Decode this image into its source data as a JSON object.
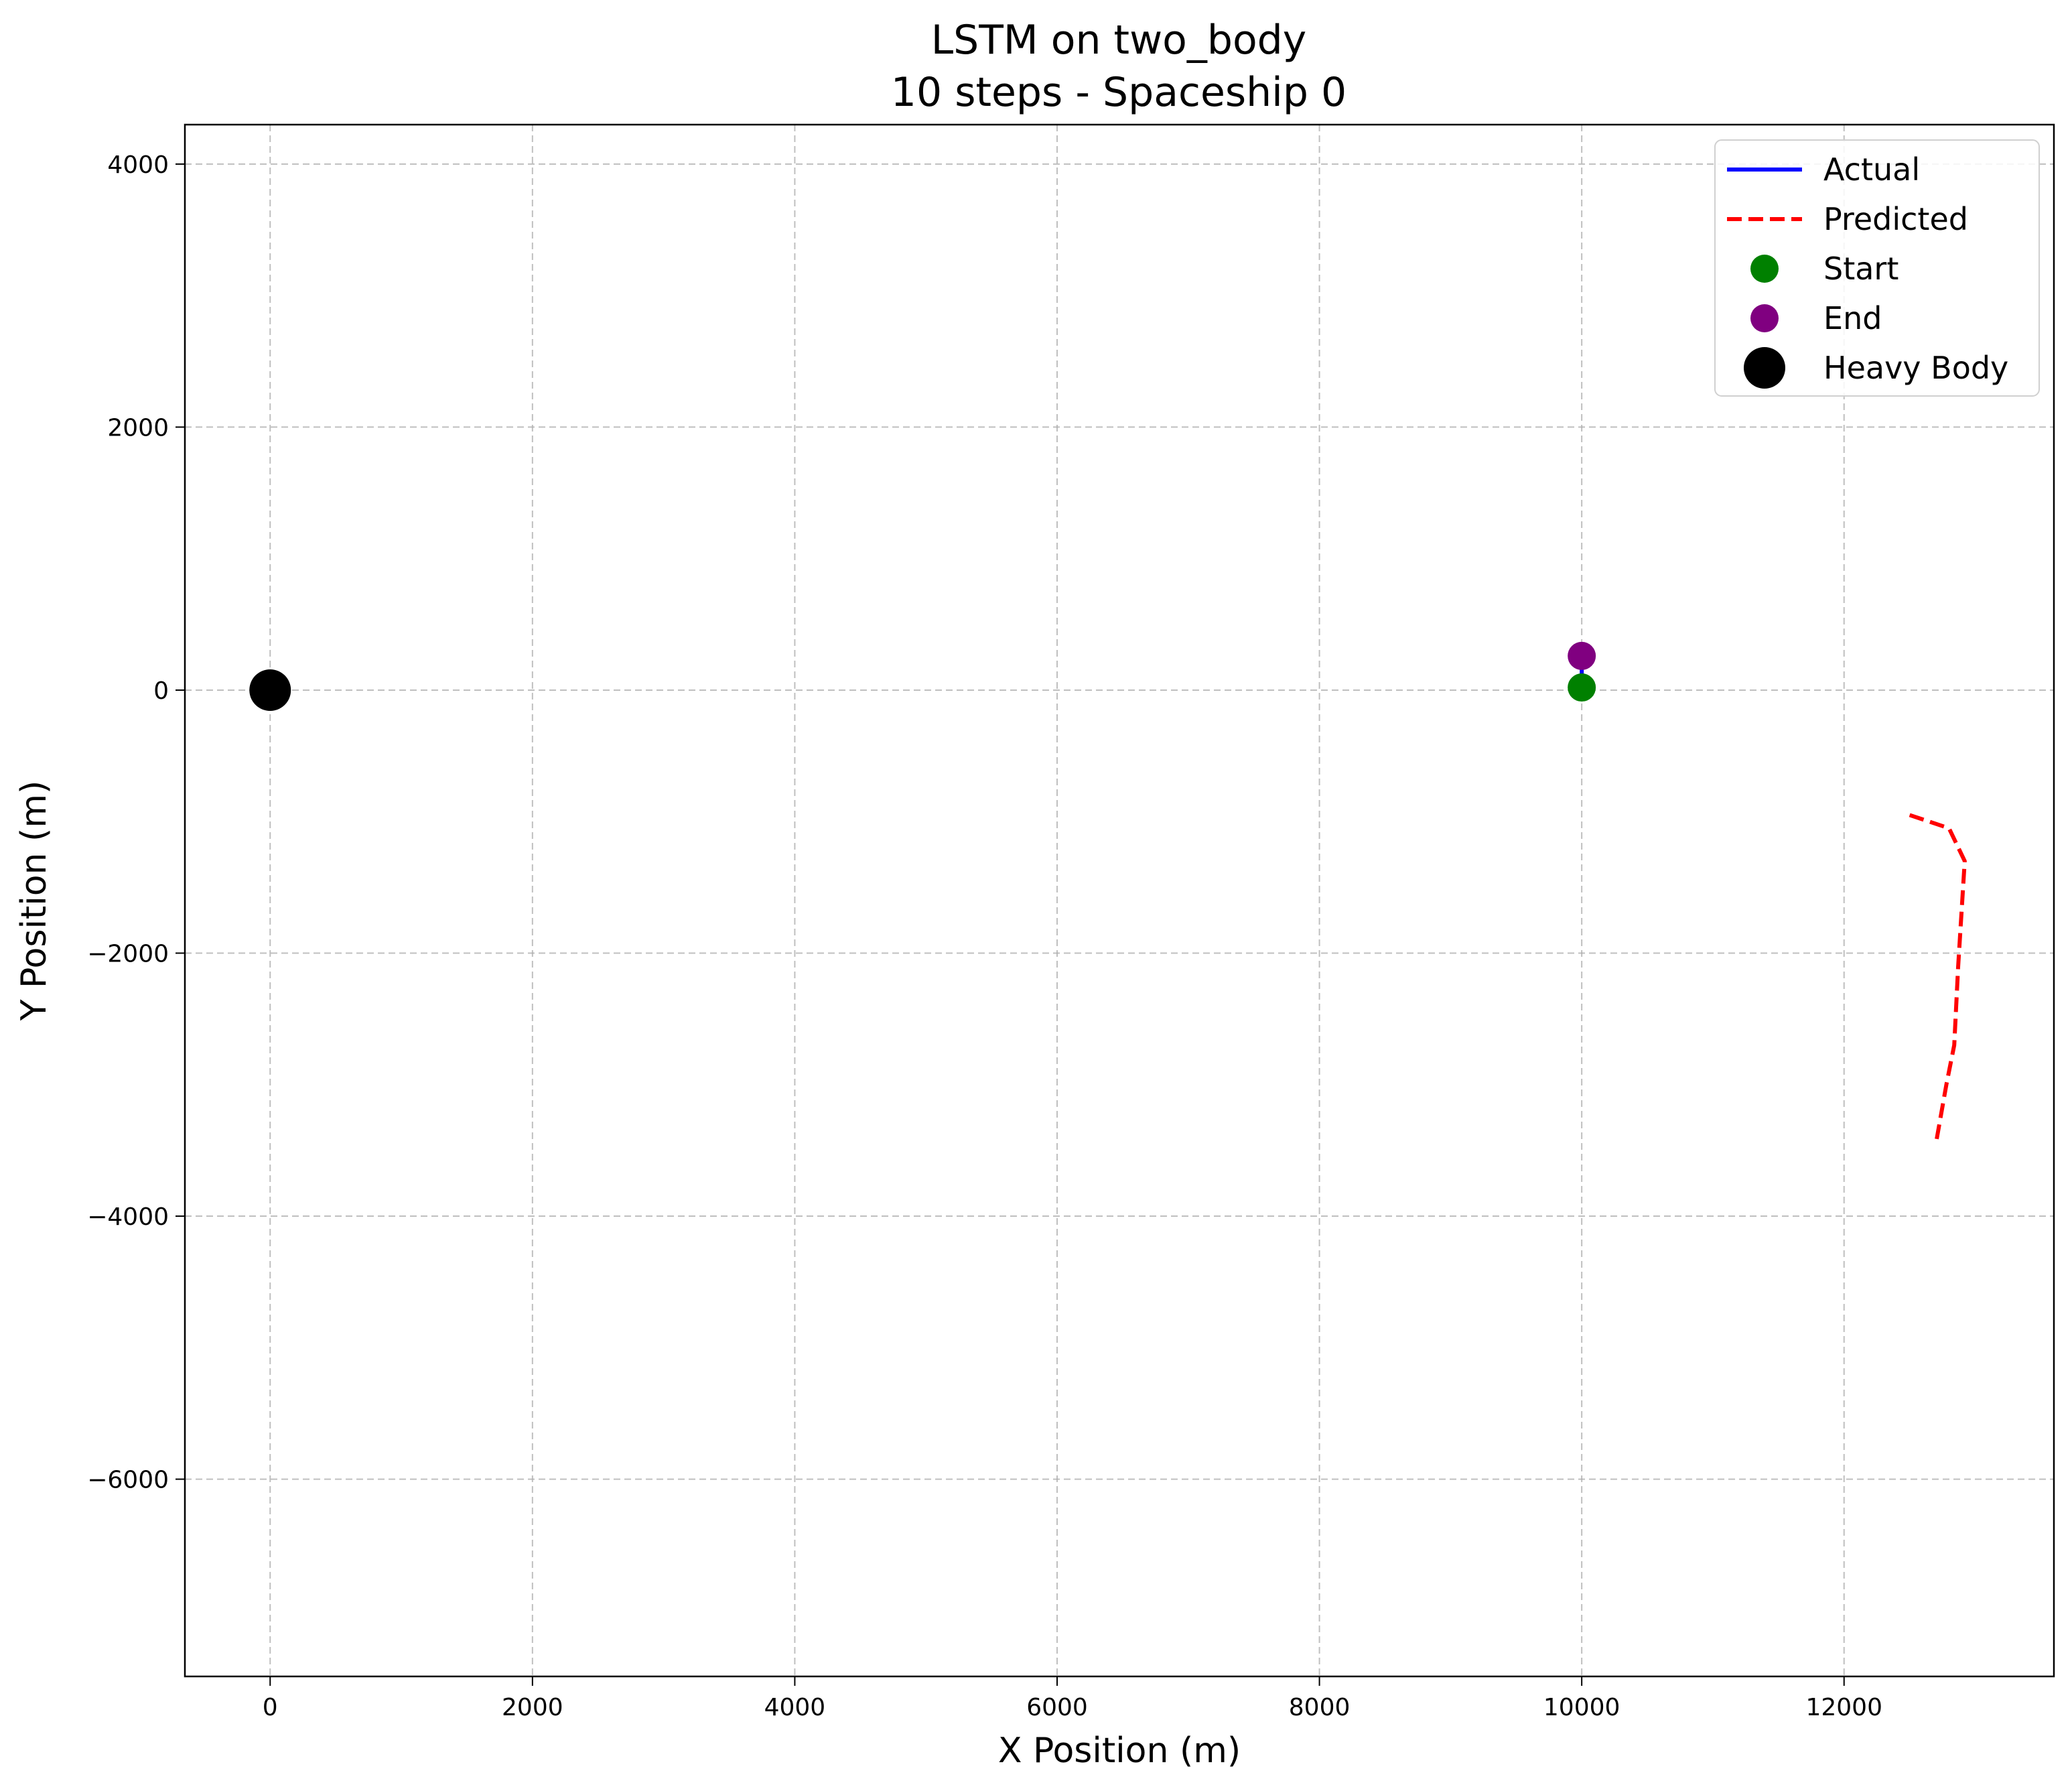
{
  "chart_data": {
    "type": "line",
    "title": "LSTM on two_body",
    "subtitle": "10 steps - Spaceship 0",
    "xlabel": "X Position (m)",
    "ylabel": "Y Position (m)",
    "xlim": [
      -650,
      13600
    ],
    "ylim": [
      -7500,
      4300
    ],
    "xticks": [
      0,
      2000,
      4000,
      6000,
      8000,
      10000,
      12000
    ],
    "yticks": [
      4000,
      2000,
      0,
      -2000,
      -4000,
      -6000
    ],
    "xtick_labels": [
      "0",
      "2000",
      "4000",
      "6000",
      "8000",
      "10000",
      "12000"
    ],
    "ytick_labels": [
      "4000",
      "2000",
      "0",
      "−2000",
      "−4000",
      "−6000"
    ],
    "grid": true,
    "legend_position": "top-right",
    "series": [
      {
        "name": "Actual",
        "style": "solid",
        "color": "#0000ff",
        "x": [
          10000,
          10000
        ],
        "y": [
          20,
          260
        ]
      },
      {
        "name": "Predicted",
        "style": "dashed",
        "color": "#ff0000",
        "x": [
          12500,
          12800,
          12920,
          12870,
          12840,
          12780,
          12700
        ],
        "y": [
          -950,
          -1050,
          -1300,
          -2100,
          -2700,
          -3000,
          -3450
        ]
      }
    ],
    "markers": [
      {
        "name": "Start",
        "color": "#008000",
        "x": 10000,
        "y": 20
      },
      {
        "name": "End",
        "color": "#800080",
        "x": 10000,
        "y": 260
      },
      {
        "name": "Heavy Body",
        "color": "#000000",
        "x": 0,
        "y": 0
      }
    ]
  }
}
